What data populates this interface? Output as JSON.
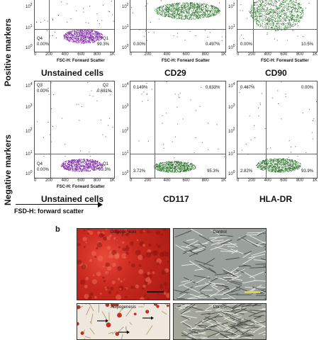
{
  "labels": {
    "positive_markers": "Positive markers",
    "negative_markers": "Negative markers",
    "axis_arrow_label": "FSD-H: forward scatter",
    "panel_b": "b"
  },
  "axis": {
    "xlabel": "FSC-H: Forward Scatter",
    "xticks": [
      "0",
      "200",
      "400",
      "600",
      "800",
      "1K"
    ],
    "yticks_top": [
      "10",
      "10",
      "10",
      "10",
      "10"
    ],
    "ytick_exps": [
      "4",
      "3",
      "2",
      "1",
      "0"
    ]
  },
  "captions": {
    "unstained_top": "Unstained cells",
    "cd29": "CD29",
    "cd90": "CD90",
    "unstained_bottom": "Unstained cells",
    "cd117": "CD117",
    "hladr": "HLA-DR"
  },
  "quadrants": {
    "unstained_top": {
      "q4": "Q4",
      "q4_val": "0.00%",
      "q1": "Q1",
      "q1_val": "99.3%"
    },
    "cd29": {
      "q4_val": "0.00%",
      "q1_val": "0.497%"
    },
    "cd90": {
      "q4_val": "0.00%",
      "q1_val": "10.5%"
    },
    "unstained_bottom": {
      "q3": "Q3",
      "q3_val": "0.00%",
      "q2": "Q2",
      "q2_val": "0.681%",
      "q4": "Q4",
      "q4_val": "0.00%",
      "q1": "Q1",
      "q1_val": "99.3%"
    },
    "cd117": {
      "ul": "0.149%",
      "ur": "0.833%",
      "ll": "3.72%",
      "lr": "95.3%"
    },
    "hladr": {
      "ul": "0.467%",
      "ur": "0.00%",
      "ll": "2.82%",
      "lr": "93.9%"
    }
  },
  "micrographs": {
    "osteogenesis": "Osteogenesis",
    "control_1": "Control",
    "adipogenesis": "Adipogenesis",
    "control_2": "Control"
  },
  "colors": {
    "purple": "#7a1fa3",
    "green": "#1f6b1f",
    "osteo_red": "#c8281e",
    "gray_cells": "#8a8f8a"
  }
}
